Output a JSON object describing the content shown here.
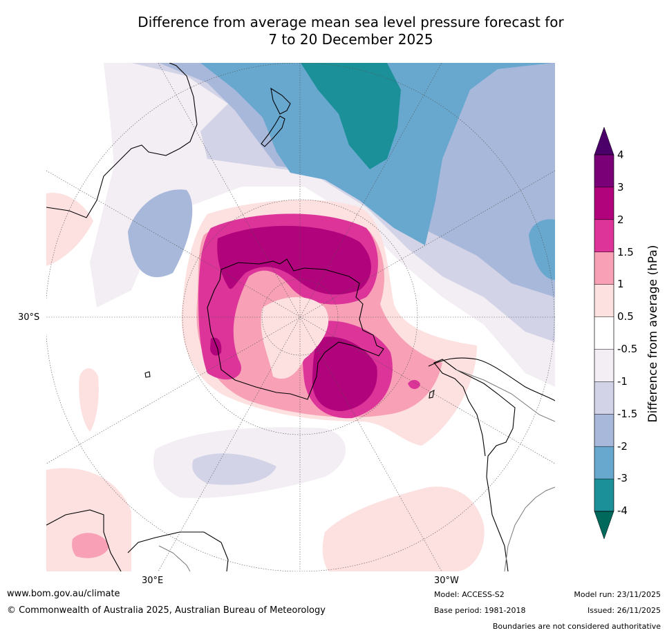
{
  "title": {
    "line1": "Difference from average mean sea level pressure forecast for",
    "line2": "7 to 20 December 2025"
  },
  "map": {
    "projection": "south-polar-stereographic",
    "lat_label": "30°S",
    "lon_labels": [
      "30°E",
      "30°W"
    ],
    "colors": {
      "coast": "#000000",
      "border": "#777777",
      "grid": "#555555"
    }
  },
  "colorbar": {
    "label": "Difference from average (hPa)",
    "ticks": [
      "4",
      "3",
      "2",
      "1.5",
      "1",
      "0.5",
      "-0.5",
      "-1",
      "-1.5",
      "-2",
      "-3",
      "-4"
    ],
    "extend_top_color": "#4b0069",
    "extend_bottom_color": "#00695b",
    "bins": [
      {
        "range": "3 to 4",
        "color": "#7a0078"
      },
      {
        "range": "2 to 3",
        "color": "#b0037c"
      },
      {
        "range": "1.5 to 2",
        "color": "#dc3499"
      },
      {
        "range": "1 to 1.5",
        "color": "#f7a0b6"
      },
      {
        "range": "0.5 to 1",
        "color": "#fde0e0"
      },
      {
        "range": "-0.5 to 0.5",
        "color": "#ffffff"
      },
      {
        "range": "-1 to -0.5",
        "color": "#f3edf4"
      },
      {
        "range": "-1.5 to -1",
        "color": "#d2d3e7"
      },
      {
        "range": "-2 to -1.5",
        "color": "#a8b8da"
      },
      {
        "range": "-3 to -2",
        "color": "#68a8cf"
      },
      {
        "range": "-4 to -3",
        "color": "#1c9098"
      }
    ]
  },
  "footer": {
    "website": "www.bom.gov.au/climate",
    "copyright": "© Commonwealth of Australia 2025, Australian Bureau of Meteorology",
    "model": "Model: ACCESS-S2",
    "base_period": "Base period: 1981-2018",
    "model_run": "Model run: 23/11/2025",
    "issued": "Issued: 26/11/2025",
    "disclaimer": "Boundaries are not considered authoritative"
  }
}
